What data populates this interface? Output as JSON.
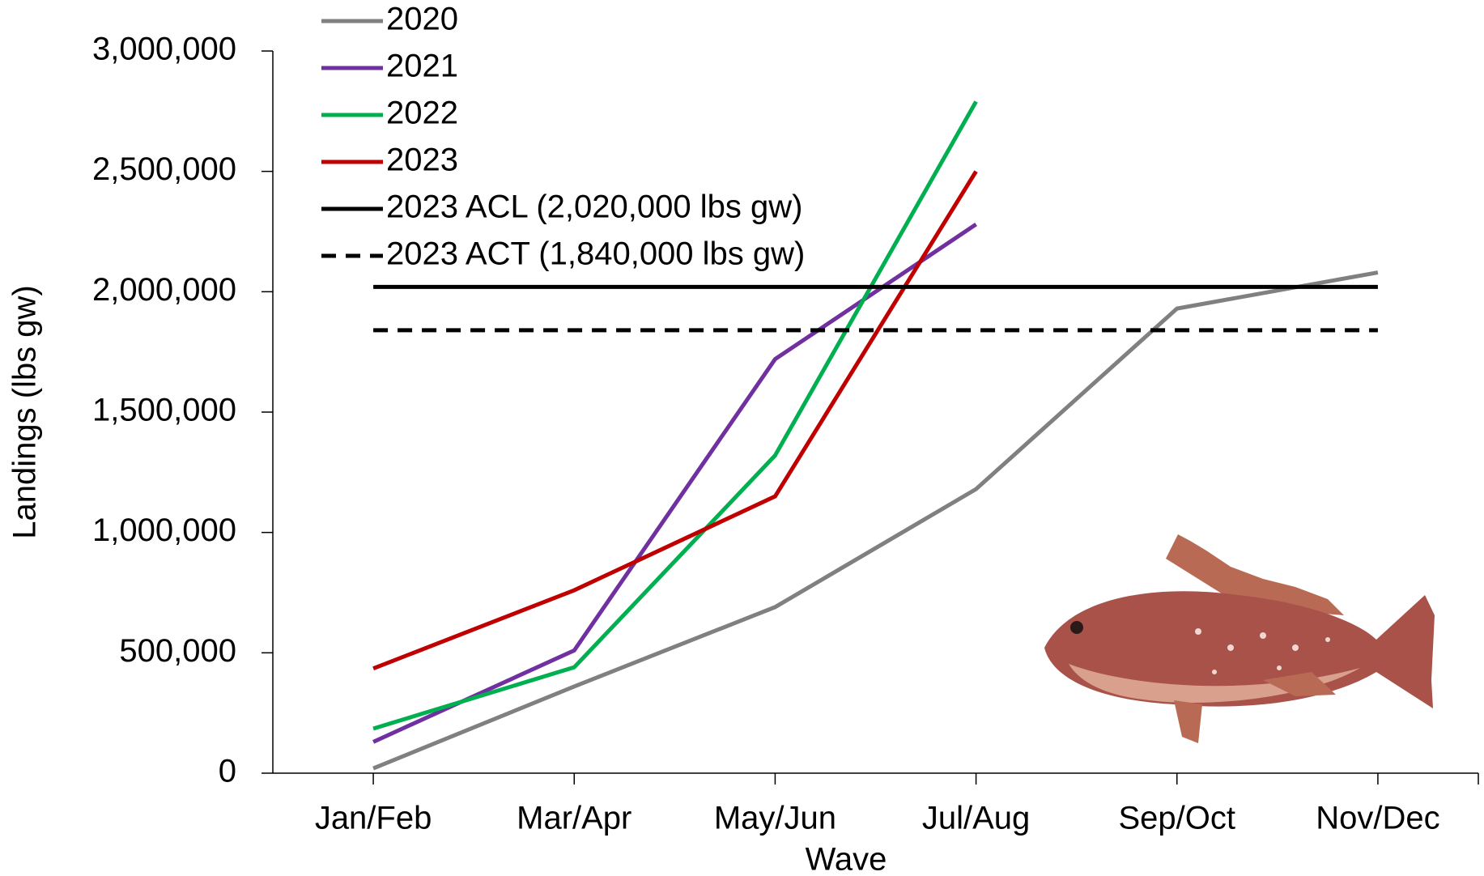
{
  "chart_data": {
    "type": "line",
    "x_label": "Wave",
    "y_label": "Landings (lbs gw)",
    "categories": [
      "Jan/Feb",
      "Mar/Apr",
      "May/Jun",
      "Jul/Aug",
      "Sep/Oct",
      "Nov/Dec"
    ],
    "series": [
      {
        "name": "2020",
        "color": "#808080",
        "values": [
          20000,
          360000,
          690000,
          1180000,
          1930000,
          2080000
        ]
      },
      {
        "name": "2021",
        "color": "#7030a0",
        "values": [
          130000,
          510000,
          1720000,
          2280000,
          null,
          null
        ]
      },
      {
        "name": "2022",
        "color": "#00b050",
        "values": [
          185000,
          440000,
          1320000,
          2790000,
          null,
          null
        ]
      },
      {
        "name": "2023",
        "color": "#c00000",
        "values": [
          435000,
          760000,
          1150000,
          2500000,
          null,
          null
        ]
      },
      {
        "name": "2023 ACL (2,020,000 lbs gw)",
        "color": "#000000",
        "values": [
          2020000,
          2020000,
          2020000,
          2020000,
          2020000,
          2020000
        ]
      },
      {
        "name": "2023 ACT (1,840,000 lbs gw)",
        "color": "#000000",
        "line_style": "dashed",
        "values": [
          1840000,
          1840000,
          1840000,
          1840000,
          1840000,
          1840000
        ]
      }
    ],
    "ylim": [
      0,
      3000000
    ],
    "yticks": [
      0,
      {
        "value": 500000,
        "label": "500,000"
      },
      {
        "value": 1000000,
        "label": "1,000,000"
      },
      {
        "value": 1500000,
        "label": "1,500,000"
      },
      {
        "value": 2000000,
        "label": "2,000,000"
      },
      {
        "value": 2500000,
        "label": "2,500,000"
      },
      {
        "value": 3000000,
        "label": "3,000,000"
      }
    ],
    "legend": "top-left"
  }
}
